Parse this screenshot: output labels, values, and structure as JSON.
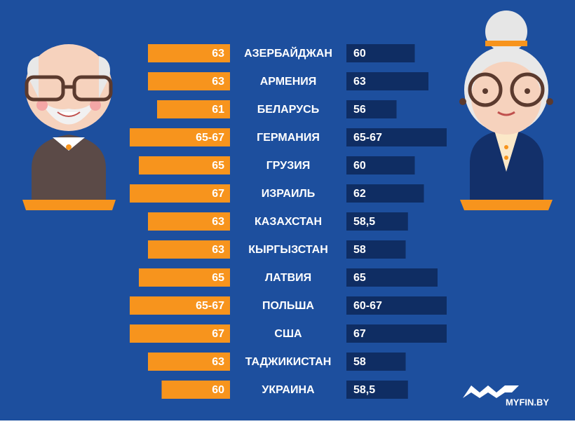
{
  "chart_data": {
    "type": "butterfly",
    "categories": [
      "АЗЕРБАЙДЖАН",
      "АРМЕНИЯ",
      "БЕЛАРУСЬ",
      "ГЕРМАНИЯ",
      "ГРУЗИЯ",
      "ИЗРАИЛЬ",
      "КАЗАХСТАН",
      "КЫРГЫЗСТАН",
      "ЛАТВИЯ",
      "ПОЛЬША",
      "США",
      "ТАДЖИКИСТАН",
      "УКРАИНА"
    ],
    "series": [
      {
        "color": "#f7941d",
        "values": [
          63,
          63,
          61,
          67,
          65,
          67,
          63,
          63,
          65,
          67,
          67,
          63,
          60
        ],
        "value_labels": [
          "63",
          "63",
          "61",
          "65-67",
          "65",
          "67",
          "63",
          "63",
          "65",
          "65-67",
          "67",
          "63",
          "60"
        ]
      },
      {
        "color": "#0f2d63",
        "values": [
          60,
          63,
          56,
          67,
          60,
          62,
          58.5,
          58,
          65,
          67,
          67,
          58,
          58.5
        ],
        "value_labels": [
          "60",
          "63",
          "56",
          "65-67",
          "60",
          "62",
          "58,5",
          "58",
          "65",
          "60-67",
          "67",
          "58",
          "58,5"
        ]
      }
    ],
    "xlim": [
      45,
      67
    ]
  },
  "logo": "MYFIN.BY"
}
